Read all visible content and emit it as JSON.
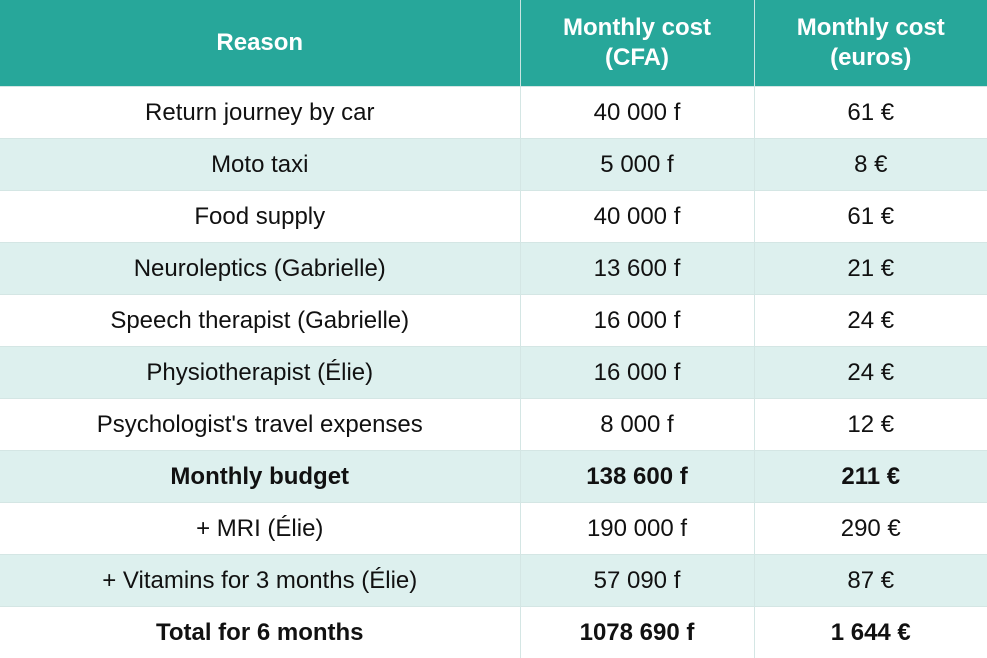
{
  "table": {
    "headers": {
      "reason": "Reason",
      "cfa": "Monthly cost\n(CFA)",
      "euros": "Monthly cost\n(euros)"
    },
    "rows": [
      {
        "reason": "Return journey by car",
        "cfa": "40 000 f",
        "euros": "61 €",
        "bold": false
      },
      {
        "reason": "Moto taxi",
        "cfa": "5 000 f",
        "euros": "8 €",
        "bold": false
      },
      {
        "reason": "Food supply",
        "cfa": "40 000 f",
        "euros": "61 €",
        "bold": false
      },
      {
        "reason": "Neuroleptics (Gabrielle)",
        "cfa": "13 600 f",
        "euros": "21 €",
        "bold": false
      },
      {
        "reason": "Speech therapist (Gabrielle)",
        "cfa": "16 000 f",
        "euros": "24 €",
        "bold": false
      },
      {
        "reason": "Physiotherapist (Élie)",
        "cfa": "16 000 f",
        "euros": "24 €",
        "bold": false
      },
      {
        "reason": "Psychologist's travel expenses",
        "cfa": "8 000 f",
        "euros": "12 €",
        "bold": false
      },
      {
        "reason": "Monthly budget",
        "cfa": "138 600 f",
        "euros": "211 €",
        "bold": true
      },
      {
        "reason": "+ MRI (Élie)",
        "cfa": "190 000 f",
        "euros": "290 €",
        "bold": false
      },
      {
        "reason": "+ Vitamins for 3 months (Élie)",
        "cfa": "57 090 f",
        "euros": "87 €",
        "bold": false
      },
      {
        "reason": "Total for 6 months",
        "cfa": "1078 690 f",
        "euros": "1 644 €",
        "bold": true
      }
    ]
  },
  "colors": {
    "header_bg": "#27a79a",
    "header_text": "#ffffff",
    "stripe": "#ddf0ee"
  }
}
